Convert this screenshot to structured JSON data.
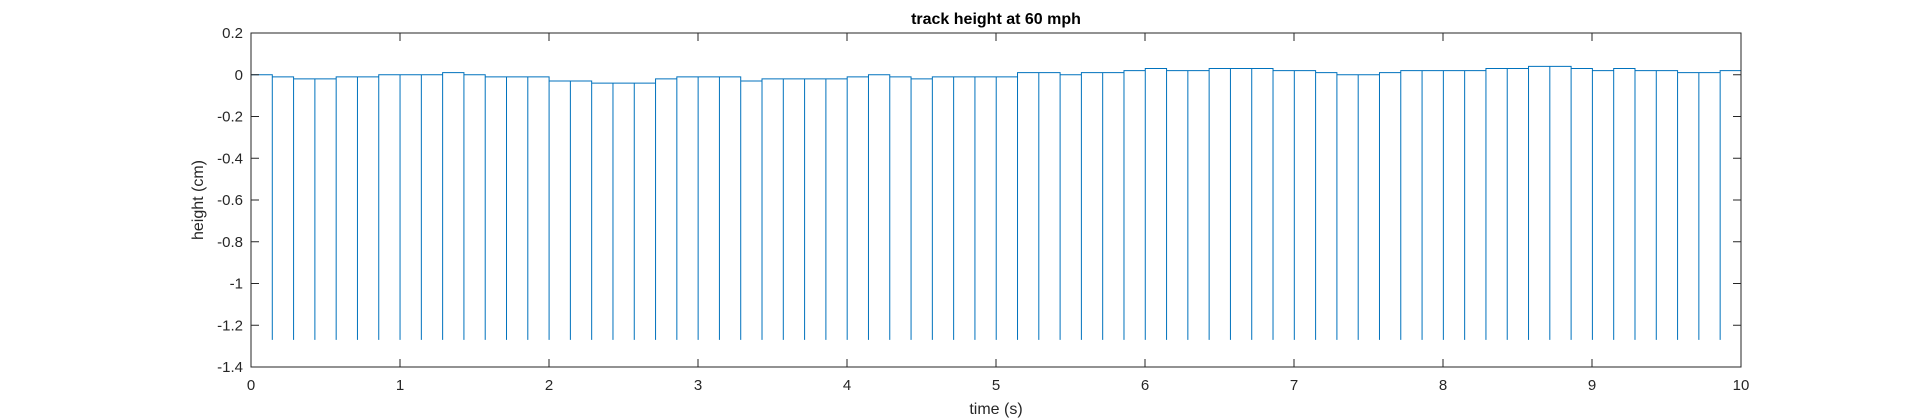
{
  "chart_data": {
    "type": "line",
    "title": "track height at 60 mph",
    "xlabel": "time (s)",
    "ylabel": "height (cm)",
    "xlim": [
      0,
      10
    ],
    "ylim": [
      -1.4,
      0.2
    ],
    "xticks": [
      0,
      1,
      2,
      3,
      4,
      5,
      6,
      7,
      8,
      9,
      10
    ],
    "yticks": [
      -1.4,
      -1.2,
      -1,
      -0.8,
      -0.6,
      -0.4,
      -0.2,
      0,
      0.2
    ],
    "xtick_labels": [
      "0",
      "1",
      "2",
      "3",
      "4",
      "5",
      "6",
      "7",
      "8",
      "9",
      "10"
    ],
    "ytick_labels": [
      "-1.4",
      "-1.2",
      "-1",
      "-0.8",
      "-0.6",
      "-0.4",
      "-0.2",
      "0",
      "0.2"
    ],
    "grid": false,
    "series_color": "#0072BD",
    "spike_bottom": -1.27,
    "step": 0.1429,
    "levels": [
      0.0,
      -0.01,
      -0.02,
      -0.02,
      -0.01,
      -0.01,
      0.0,
      0.0,
      0.0,
      0.01,
      0.0,
      -0.01,
      -0.01,
      -0.01,
      -0.03,
      -0.03,
      -0.04,
      -0.04,
      -0.04,
      -0.02,
      -0.01,
      -0.01,
      -0.01,
      -0.03,
      -0.02,
      -0.02,
      -0.02,
      -0.02,
      -0.01,
      0.0,
      -0.01,
      -0.02,
      -0.01,
      -0.01,
      -0.01,
      -0.01,
      0.01,
      0.01,
      0.0,
      0.01,
      0.01,
      0.02,
      0.03,
      0.02,
      0.02,
      0.03,
      0.03,
      0.03,
      0.02,
      0.02,
      0.01,
      0.0,
      0.0,
      0.01,
      0.02,
      0.02,
      0.02,
      0.02,
      0.03,
      0.03,
      0.04,
      0.04,
      0.03,
      0.02,
      0.03,
      0.02,
      0.02,
      0.01,
      0.01,
      0.02
    ]
  }
}
